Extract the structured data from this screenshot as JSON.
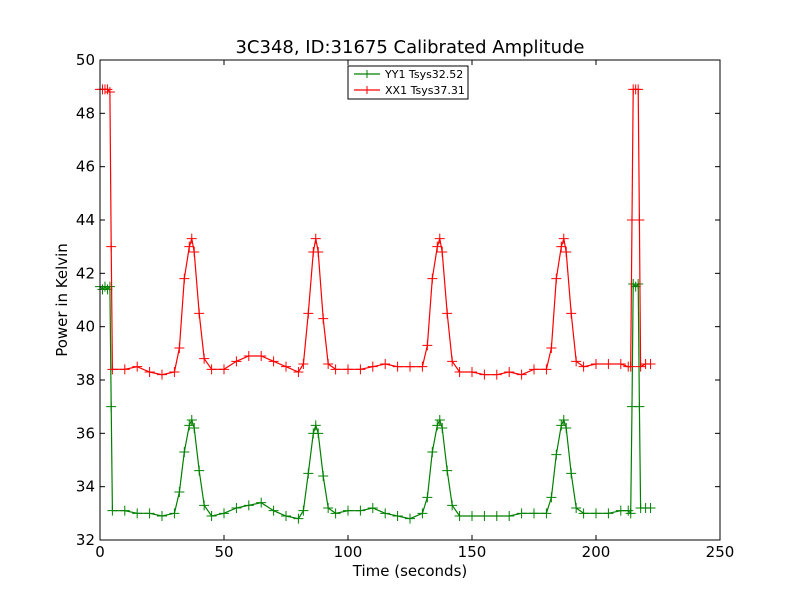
{
  "chart_data": {
    "type": "line",
    "title": "3C348, ID:31675 Calibrated Amplitude",
    "xlabel": "Time (seconds)",
    "ylabel": "Power in Kelvin",
    "xlim": [
      0,
      250
    ],
    "ylim": [
      32,
      50
    ],
    "xticks": [
      0,
      50,
      100,
      150,
      200,
      250
    ],
    "yticks": [
      32,
      34,
      36,
      38,
      40,
      42,
      44,
      46,
      48,
      50
    ],
    "grid": false,
    "legend_position": "top-center",
    "marker": "+",
    "series": [
      {
        "name": "YY1 Tsys32.52",
        "color": "#008000",
        "x": [
          0,
          1,
          2,
          3,
          4,
          4.5,
          5,
          10,
          15,
          20,
          25,
          30,
          32,
          34,
          36,
          37,
          38,
          40,
          42,
          45,
          50,
          55,
          60,
          65,
          70,
          75,
          80,
          82,
          84,
          86,
          87,
          88,
          90,
          92,
          95,
          100,
          105,
          110,
          115,
          120,
          125,
          130,
          132,
          134,
          136,
          137,
          138,
          140,
          142,
          145,
          150,
          155,
          160,
          165,
          170,
          175,
          180,
          182,
          184,
          186,
          187,
          188,
          190,
          192,
          195,
          200,
          205,
          210,
          213,
          214,
          214.5,
          215,
          216,
          217,
          217.5,
          218,
          220,
          222
        ],
        "y": [
          41.5,
          41.4,
          41.5,
          41.4,
          41.5,
          37.0,
          33.1,
          33.1,
          33.0,
          33.0,
          32.9,
          33.0,
          33.8,
          35.3,
          36.3,
          36.5,
          36.2,
          34.6,
          33.3,
          32.9,
          33.0,
          33.2,
          33.3,
          33.4,
          33.1,
          32.9,
          32.8,
          33.1,
          34.5,
          36.0,
          36.3,
          36.0,
          34.4,
          33.2,
          33.0,
          33.1,
          33.1,
          33.2,
          33.0,
          32.9,
          32.8,
          33.0,
          33.6,
          35.3,
          36.3,
          36.5,
          36.2,
          34.6,
          33.3,
          32.9,
          32.9,
          32.9,
          32.9,
          32.9,
          33.0,
          33.0,
          33.0,
          33.6,
          35.2,
          36.3,
          36.5,
          36.2,
          34.5,
          33.2,
          33.0,
          33.0,
          33.0,
          33.1,
          33.1,
          33.0,
          37.0,
          41.6,
          41.5,
          41.6,
          37.0,
          33.2,
          33.2,
          33.2
        ]
      },
      {
        "name": "XX1 Tsys37.31",
        "color": "#ff0000",
        "x": [
          0,
          1,
          2,
          3,
          4,
          4.5,
          5,
          10,
          15,
          20,
          25,
          30,
          32,
          34,
          36,
          37,
          38,
          40,
          42,
          45,
          50,
          55,
          60,
          65,
          70,
          75,
          80,
          82,
          84,
          86,
          87,
          88,
          90,
          92,
          95,
          100,
          105,
          110,
          115,
          120,
          125,
          130,
          132,
          134,
          136,
          137,
          138,
          140,
          142,
          145,
          150,
          155,
          160,
          165,
          170,
          175,
          180,
          182,
          184,
          186,
          187,
          188,
          190,
          192,
          195,
          200,
          205,
          210,
          213,
          214,
          214.5,
          215,
          216,
          217,
          217.5,
          218,
          220,
          222
        ],
        "y": [
          48.9,
          48.9,
          48.9,
          48.9,
          48.8,
          43.0,
          38.4,
          38.4,
          38.5,
          38.3,
          38.2,
          38.3,
          39.2,
          41.8,
          43.0,
          43.3,
          42.8,
          40.5,
          38.8,
          38.4,
          38.4,
          38.7,
          38.9,
          38.9,
          38.7,
          38.5,
          38.3,
          38.6,
          40.5,
          42.8,
          43.3,
          42.8,
          40.3,
          38.6,
          38.4,
          38.4,
          38.4,
          38.5,
          38.6,
          38.5,
          38.5,
          38.5,
          39.3,
          41.8,
          43.0,
          43.3,
          42.8,
          40.5,
          38.7,
          38.3,
          38.3,
          38.2,
          38.2,
          38.3,
          38.2,
          38.4,
          38.4,
          39.2,
          41.8,
          43.0,
          43.3,
          42.8,
          40.5,
          38.7,
          38.5,
          38.6,
          38.6,
          38.6,
          38.5,
          38.5,
          44.0,
          48.9,
          48.9,
          48.9,
          44.0,
          38.5,
          38.6,
          38.6
        ]
      }
    ]
  }
}
